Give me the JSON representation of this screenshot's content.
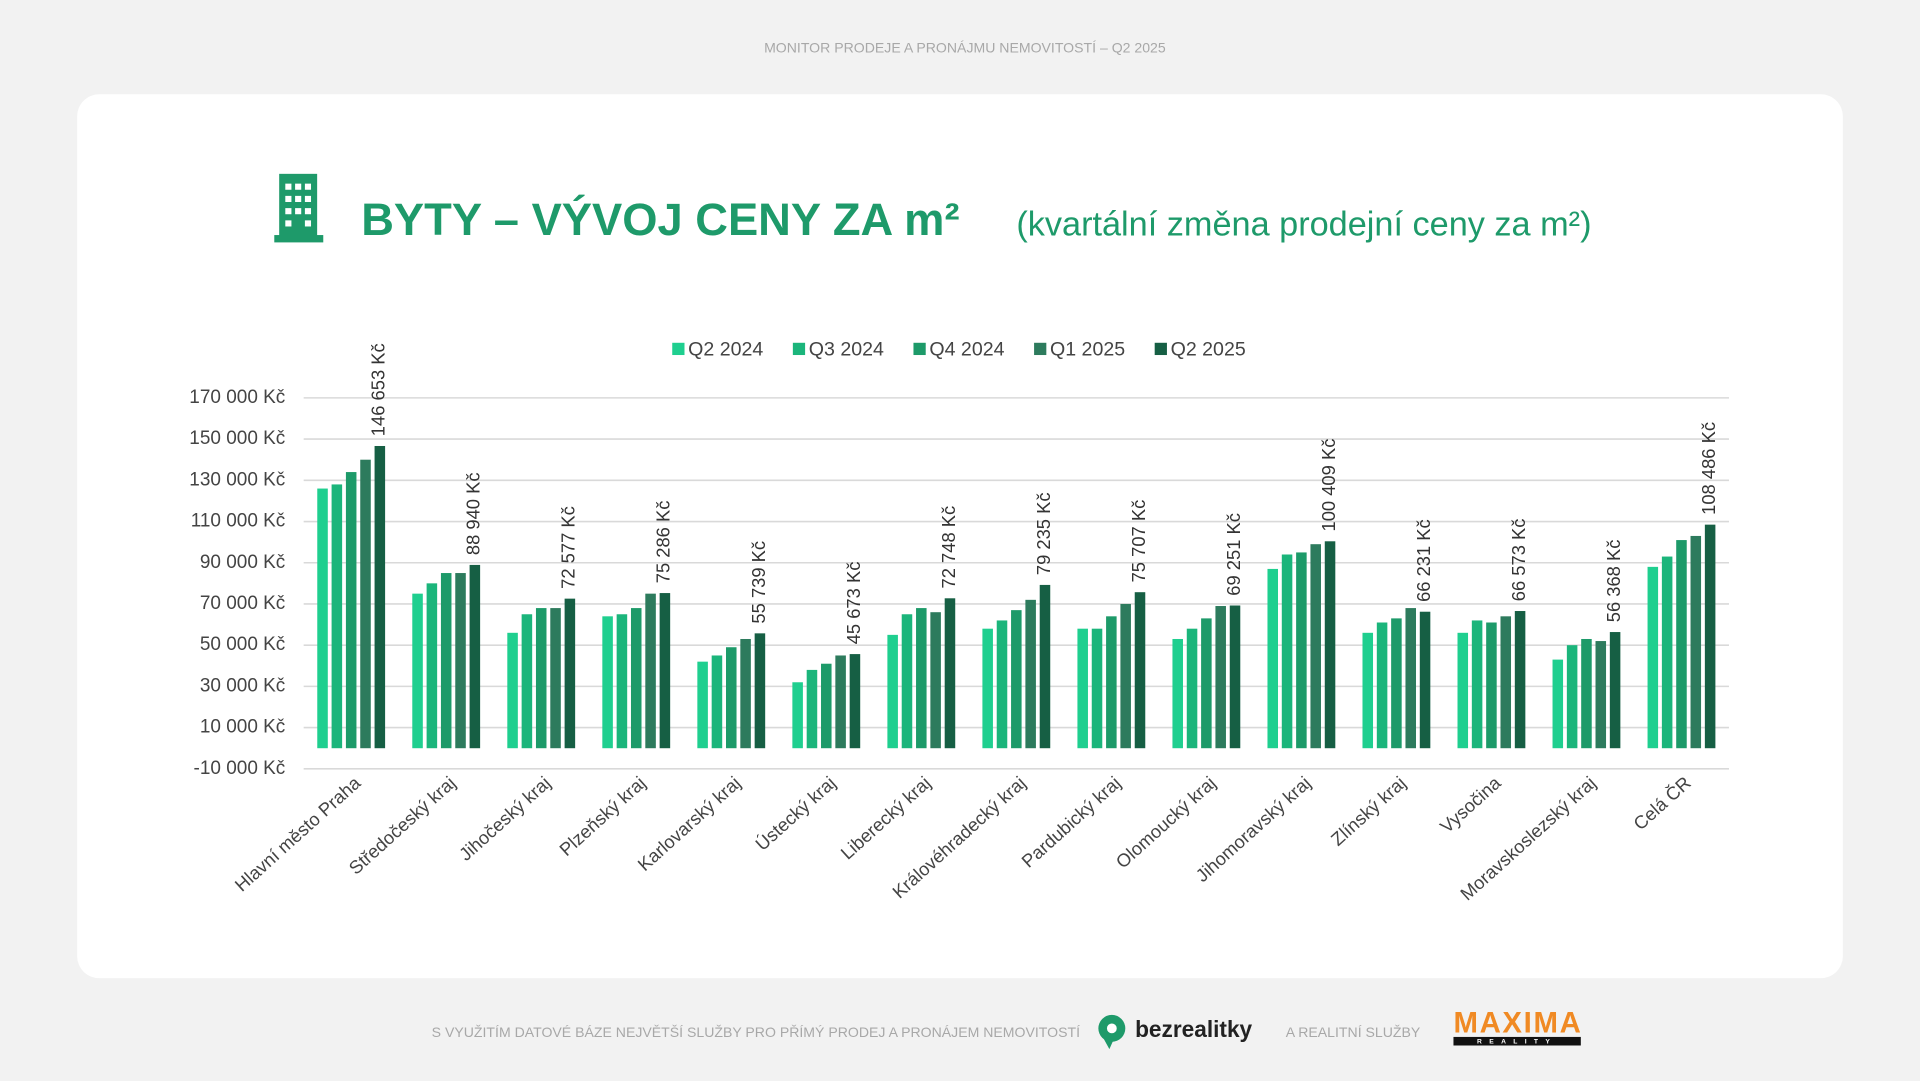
{
  "header": {
    "title": "MONITOR PRODEJE A PRONÁJMU NEMOVITOSTÍ – Q2 2025"
  },
  "chart_data": {
    "type": "bar",
    "title": "BYTY – VÝVOJ CENY ZA m²",
    "subtitle": "(kvartální změna prodejní ceny za m²)",
    "categories": [
      "Hlavní město Praha",
      "Středočeský kraj",
      "Jihočeský kraj",
      "Plzeňský kraj",
      "Karlovarský kraj",
      "Ústecký kraj",
      "Liberecký kraj",
      "Královéhradecký kraj",
      "Pardubický kraj",
      "Olomoucký kraj",
      "Jihomoravský kraj",
      "Zlínský kraj",
      "Vysočina",
      "Moravskoslezský kraj",
      "Celá ČR"
    ],
    "series": [
      {
        "name": "Q2 2024",
        "color": "#1fcf8f",
        "values": [
          126000,
          75000,
          56000,
          64000,
          42000,
          32000,
          55000,
          58000,
          58000,
          53000,
          87000,
          56000,
          56000,
          43000,
          88000
        ]
      },
      {
        "name": "Q3 2024",
        "color": "#1bb57b",
        "values": [
          128000,
          80000,
          65000,
          65000,
          45000,
          38000,
          65000,
          62000,
          58000,
          58000,
          94000,
          61000,
          62000,
          50000,
          93000
        ]
      },
      {
        "name": "Q4 2024",
        "color": "#1d9a69",
        "values": [
          134000,
          85000,
          68000,
          68000,
          49000,
          41000,
          68000,
          67000,
          64000,
          63000,
          95000,
          63000,
          61000,
          53000,
          101000
        ]
      },
      {
        "name": "Q1 2025",
        "color": "#2d7b5d",
        "values": [
          140000,
          85000,
          68000,
          75000,
          53000,
          45000,
          66000,
          72000,
          70000,
          69000,
          99000,
          68000,
          64000,
          52000,
          103000
        ]
      },
      {
        "name": "Q2 2025",
        "color": "#165f44",
        "values": [
          146653,
          88940,
          72577,
          75286,
          55739,
          45673,
          72748,
          79235,
          75707,
          69251,
          100409,
          66231,
          66573,
          56368,
          108486
        ],
        "value_labels": [
          "146 653 Kč",
          "88 940 Kč",
          "72 577 Kč",
          "75 286 Kč",
          "55 739 Kč",
          "45 673 Kč",
          "72 748 Kč",
          "79 235 Kč",
          "75 707 Kč",
          "69 251 Kč",
          "100 409 Kč",
          "66 231 Kč",
          "66 573 Kč",
          "56 368 Kč",
          "108 486 Kč"
        ]
      }
    ],
    "ylim": [
      -10000,
      170000
    ],
    "yticks": [
      {
        "value": -10000,
        "label": "-10 000 Kč"
      },
      {
        "value": 10000,
        "label": "10 000 Kč"
      },
      {
        "value": 30000,
        "label": "30 000 Kč"
      },
      {
        "value": 50000,
        "label": "50 000 Kč"
      },
      {
        "value": 70000,
        "label": "70 000 Kč"
      },
      {
        "value": 90000,
        "label": "90 000 Kč"
      },
      {
        "value": 110000,
        "label": "110 000 Kč"
      },
      {
        "value": 130000,
        "label": "130 000 Kč"
      },
      {
        "value": 150000,
        "label": "150 000 Kč"
      },
      {
        "value": 170000,
        "label": "170 000 Kč"
      }
    ],
    "grid": true,
    "legend": "top"
  },
  "footer": {
    "text": "S VYUŽITÍM DATOVÉ BÁZE NEJVĚTŠÍ SLUŽBY PRO PŘÍMÝ PRODEJ A PRONÁJEM NEMOVITOSTÍ",
    "brand": "bezrealitky",
    "connector": "A REALITNÍ SLUŽBY",
    "partner": "MAXIMA",
    "partner_sub": "REALITY"
  }
}
